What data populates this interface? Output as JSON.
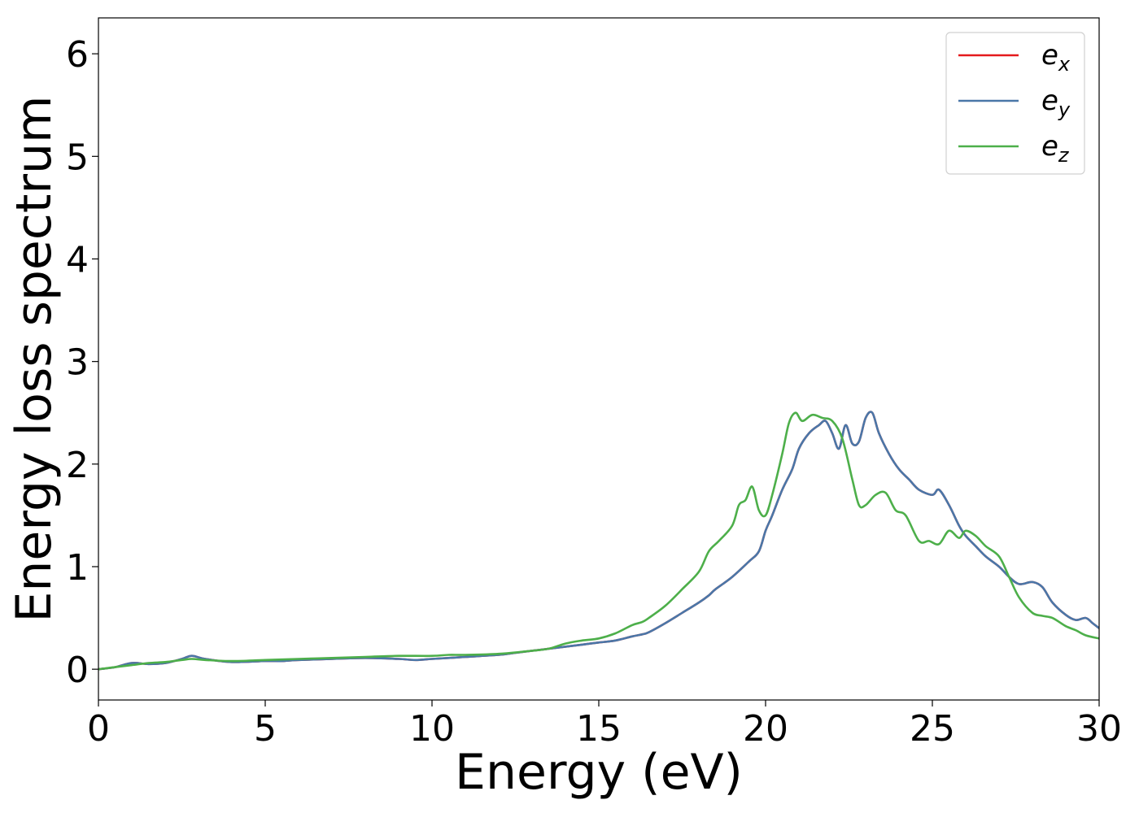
{
  "chart_data": {
    "type": "line",
    "xlabel": "Energy (eV)",
    "ylabel": "Energy loss spectrum",
    "xlim": [
      0,
      30
    ],
    "ylim": [
      -0.3,
      6.35
    ],
    "xticks": [
      0,
      5,
      10,
      15,
      20,
      25,
      30
    ],
    "yticks": [
      0,
      1,
      2,
      3,
      4,
      5,
      6
    ],
    "xtick_labels": [
      "0",
      "5",
      "10",
      "15",
      "20",
      "25",
      "30"
    ],
    "ytick_labels": [
      "0",
      "1",
      "2",
      "3",
      "4",
      "5",
      "6"
    ],
    "grid": false,
    "legend_position": "top-right",
    "series": [
      {
        "name": "e_x",
        "legend_base": "e",
        "legend_sub": "x",
        "color": "#e41a1c",
        "x": [
          0,
          0.5,
          1,
          1.5,
          2,
          2.5,
          2.8,
          3.2,
          4,
          5,
          5.5,
          6,
          7,
          8,
          9,
          9.5,
          10,
          11,
          12,
          12.5,
          13,
          13.5,
          14,
          14.5,
          15,
          15.5,
          16,
          16.3,
          16.5,
          17,
          17.5,
          18,
          18.3,
          18.5,
          19,
          19.5,
          19.8,
          20,
          20.2,
          20.5,
          20.8,
          21,
          21.3,
          21.6,
          21.8,
          22,
          22.2,
          22.4,
          22.6,
          22.8,
          23,
          23.2,
          23.4,
          23.7,
          24,
          24.3,
          24.6,
          25,
          25.2,
          25.5,
          25.8,
          26,
          26.3,
          26.6,
          27,
          27.3,
          27.6,
          28,
          28.3,
          28.6,
          29,
          29.3,
          29.6,
          29.8,
          30
        ],
        "y": [
          0,
          0.02,
          0.06,
          0.05,
          0.06,
          0.1,
          0.13,
          0.1,
          0.07,
          0.08,
          0.08,
          0.09,
          0.1,
          0.11,
          0.1,
          0.09,
          0.1,
          0.12,
          0.14,
          0.16,
          0.18,
          0.2,
          0.22,
          0.24,
          0.26,
          0.28,
          0.32,
          0.34,
          0.36,
          0.45,
          0.55,
          0.65,
          0.72,
          0.78,
          0.9,
          1.05,
          1.15,
          1.35,
          1.5,
          1.75,
          1.95,
          2.15,
          2.3,
          2.38,
          2.42,
          2.3,
          2.15,
          2.38,
          2.2,
          2.22,
          2.45,
          2.5,
          2.3,
          2.1,
          1.95,
          1.85,
          1.75,
          1.7,
          1.75,
          1.6,
          1.4,
          1.3,
          1.2,
          1.1,
          1.0,
          0.9,
          0.83,
          0.85,
          0.8,
          0.65,
          0.53,
          0.48,
          0.5,
          0.45,
          0.4
        ]
      },
      {
        "name": "e_y",
        "legend_base": "e",
        "legend_sub": "y",
        "color": "#4a77a8",
        "x": [
          0,
          0.5,
          1,
          1.5,
          2,
          2.5,
          2.8,
          3.2,
          4,
          5,
          5.5,
          6,
          7,
          8,
          9,
          9.5,
          10,
          11,
          12,
          12.5,
          13,
          13.5,
          14,
          14.5,
          15,
          15.5,
          16,
          16.3,
          16.5,
          17,
          17.5,
          18,
          18.3,
          18.5,
          19,
          19.5,
          19.8,
          20,
          20.2,
          20.5,
          20.8,
          21,
          21.3,
          21.6,
          21.8,
          22,
          22.2,
          22.4,
          22.6,
          22.8,
          23,
          23.2,
          23.4,
          23.7,
          24,
          24.3,
          24.6,
          25,
          25.2,
          25.5,
          25.8,
          26,
          26.3,
          26.6,
          27,
          27.3,
          27.6,
          28,
          28.3,
          28.6,
          29,
          29.3,
          29.6,
          29.8,
          30
        ],
        "y": [
          0,
          0.02,
          0.06,
          0.05,
          0.06,
          0.1,
          0.13,
          0.1,
          0.07,
          0.08,
          0.08,
          0.09,
          0.1,
          0.11,
          0.1,
          0.09,
          0.1,
          0.12,
          0.14,
          0.16,
          0.18,
          0.2,
          0.22,
          0.24,
          0.26,
          0.28,
          0.32,
          0.34,
          0.36,
          0.45,
          0.55,
          0.65,
          0.72,
          0.78,
          0.9,
          1.05,
          1.15,
          1.35,
          1.5,
          1.75,
          1.95,
          2.15,
          2.3,
          2.38,
          2.42,
          2.3,
          2.15,
          2.38,
          2.2,
          2.22,
          2.45,
          2.5,
          2.3,
          2.1,
          1.95,
          1.85,
          1.75,
          1.7,
          1.75,
          1.6,
          1.4,
          1.3,
          1.2,
          1.1,
          1.0,
          0.9,
          0.83,
          0.85,
          0.8,
          0.65,
          0.53,
          0.48,
          0.5,
          0.45,
          0.4
        ]
      },
      {
        "name": "e_z",
        "legend_base": "e",
        "legend_sub": "z",
        "color": "#4daf4a",
        "x": [
          0,
          0.5,
          1,
          1.5,
          2,
          2.5,
          2.8,
          3.2,
          4,
          5,
          6,
          7,
          8,
          9,
          10,
          10.5,
          11,
          12,
          13,
          13.5,
          14,
          14.5,
          15,
          15.5,
          16,
          16.3,
          16.5,
          17,
          17.5,
          18,
          18.3,
          18.6,
          19,
          19.2,
          19.4,
          19.6,
          19.8,
          20,
          20.2,
          20.5,
          20.7,
          20.9,
          21.1,
          21.4,
          21.7,
          22,
          22.3,
          22.6,
          22.8,
          23,
          23.3,
          23.6,
          23.9,
          24.2,
          24.6,
          24.9,
          25.2,
          25.5,
          25.8,
          26,
          26.3,
          26.6,
          27,
          27.3,
          27.6,
          28,
          28.3,
          28.6,
          29,
          29.3,
          29.6,
          30
        ],
        "y": [
          0,
          0.02,
          0.04,
          0.06,
          0.07,
          0.09,
          0.1,
          0.09,
          0.08,
          0.09,
          0.1,
          0.11,
          0.12,
          0.13,
          0.13,
          0.14,
          0.14,
          0.15,
          0.18,
          0.2,
          0.25,
          0.28,
          0.3,
          0.35,
          0.43,
          0.46,
          0.5,
          0.62,
          0.78,
          0.95,
          1.15,
          1.25,
          1.4,
          1.6,
          1.65,
          1.78,
          1.55,
          1.5,
          1.7,
          2.1,
          2.4,
          2.5,
          2.42,
          2.48,
          2.45,
          2.42,
          2.25,
          1.85,
          1.6,
          1.6,
          1.7,
          1.72,
          1.55,
          1.5,
          1.25,
          1.25,
          1.22,
          1.35,
          1.28,
          1.35,
          1.3,
          1.2,
          1.1,
          0.9,
          0.7,
          0.55,
          0.52,
          0.5,
          0.42,
          0.38,
          0.33,
          0.3
        ]
      }
    ]
  }
}
